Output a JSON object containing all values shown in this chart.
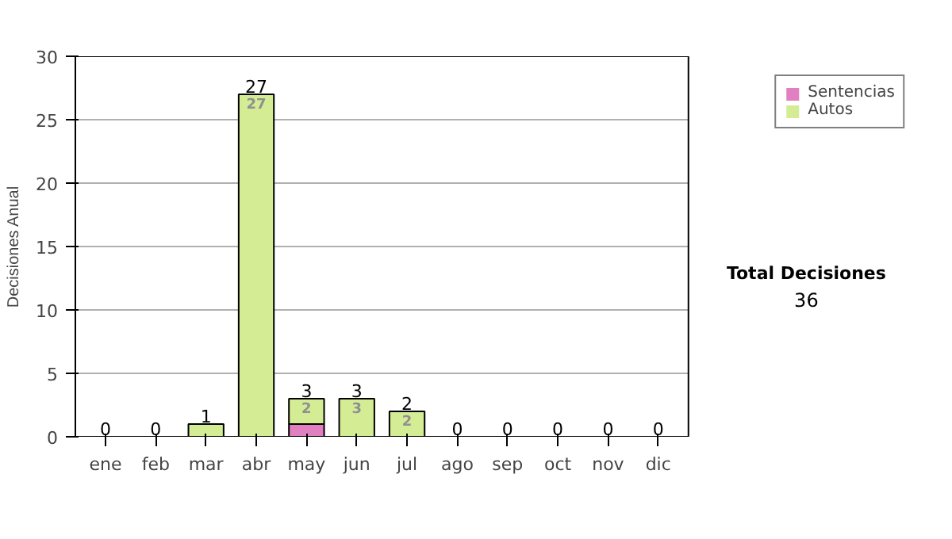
{
  "chart_data": {
    "type": "bar",
    "stacked": true,
    "ylabel": "Decisiones Anual",
    "categories": [
      "ene",
      "feb",
      "mar",
      "abr",
      "may",
      "jun",
      "jul",
      "ago",
      "sep",
      "oct",
      "nov",
      "dic"
    ],
    "series": [
      {
        "name": "Sentencias",
        "color": "#e080c0",
        "values": [
          0,
          0,
          0,
          0,
          1,
          0,
          0,
          0,
          0,
          0,
          0,
          0
        ]
      },
      {
        "name": "Autos",
        "color": "#d4ec94",
        "values": [
          0,
          0,
          1,
          27,
          2,
          3,
          2,
          0,
          0,
          0,
          0,
          0
        ],
        "value_labels": [
          null,
          null,
          null,
          "27",
          "2",
          "3",
          "2",
          null,
          null,
          null,
          null,
          null
        ]
      }
    ],
    "totals": [
      "0",
      "0",
      "1",
      "27",
      "3",
      "3",
      "2",
      "0",
      "0",
      "0",
      "0",
      "0"
    ],
    "ylim": [
      0,
      30
    ],
    "yticks": [
      0,
      5,
      10,
      15,
      20,
      25,
      30
    ],
    "grid": "y",
    "legend": "right",
    "annotations": [
      "Total Decisiones",
      "36"
    ]
  }
}
